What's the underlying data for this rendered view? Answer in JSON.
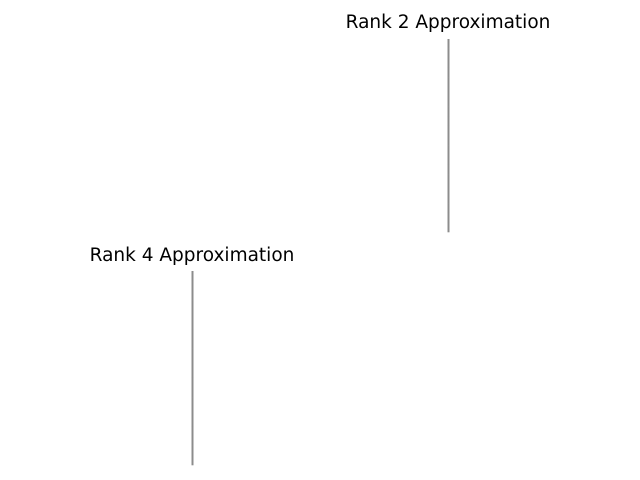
{
  "chart_data": [
    {
      "type": "heatmap",
      "title": "Rank 2 Approximation",
      "xlabel": "",
      "ylabel": "",
      "axis": "off",
      "grid": false,
      "image_columns": 1,
      "values": [
        0.55,
        0.55,
        0.55,
        0.55,
        0.55,
        0.55,
        0.55,
        0.55,
        0.55,
        0.55,
        0.55,
        0.55,
        0.55,
        0.55,
        0.55,
        0.55,
        0.55,
        0.55,
        0.55,
        0.55
      ],
      "cmap": "gray",
      "color": "#8a8a8a"
    },
    {
      "type": "heatmap",
      "title": "Rank 4 Approximation",
      "xlabel": "",
      "ylabel": "",
      "axis": "off",
      "grid": false,
      "image_columns": 1,
      "values": [
        0.55,
        0.55,
        0.55,
        0.55,
        0.55,
        0.55,
        0.55,
        0.55,
        0.55,
        0.55,
        0.55,
        0.55,
        0.55,
        0.55,
        0.55,
        0.55,
        0.55,
        0.55,
        0.55,
        0.55
      ],
      "cmap": "gray",
      "color": "#8a8a8a"
    }
  ]
}
